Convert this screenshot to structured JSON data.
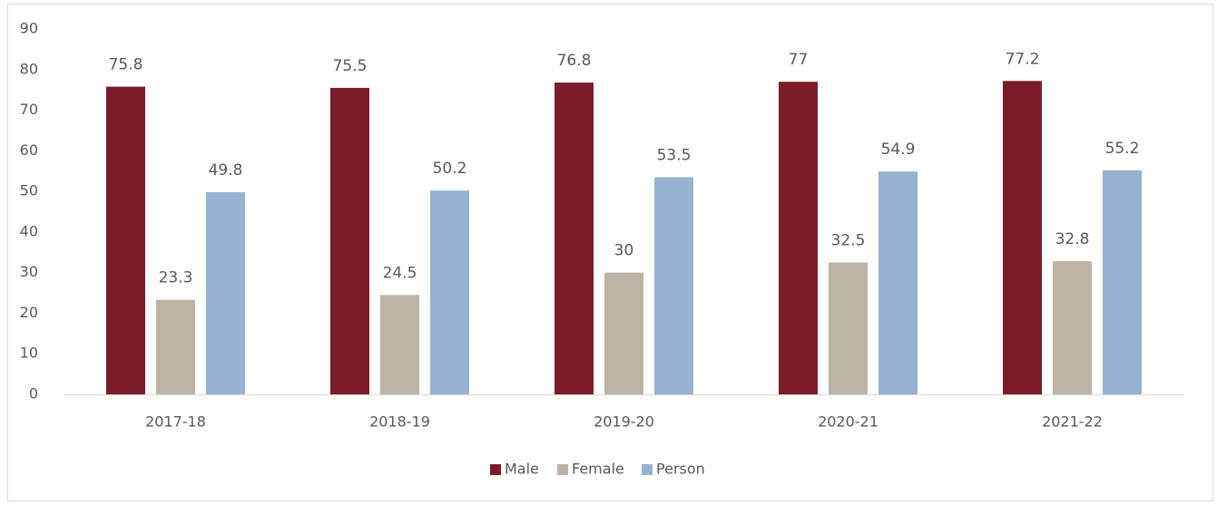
{
  "chart_data": {
    "type": "bar",
    "categories": [
      "2017-18",
      "2018-19",
      "2019-20",
      "2020-21",
      "2021-22"
    ],
    "series": [
      {
        "name": "Male",
        "color": "#7b1c28",
        "values": [
          75.8,
          75.5,
          76.8,
          77,
          77.2
        ]
      },
      {
        "name": "Female",
        "color": "#bdb3a5",
        "values": [
          23.3,
          24.5,
          30,
          32.5,
          32.8
        ]
      },
      {
        "name": "Person",
        "color": "#96b3cf",
        "values": [
          49.8,
          50.2,
          53.5,
          54.9,
          55.2
        ]
      }
    ],
    "ylim": [
      0,
      90
    ],
    "yticks": [
      0,
      10,
      20,
      30,
      40,
      50,
      60,
      70,
      80,
      90
    ],
    "grid": false,
    "legend": "bottom"
  }
}
